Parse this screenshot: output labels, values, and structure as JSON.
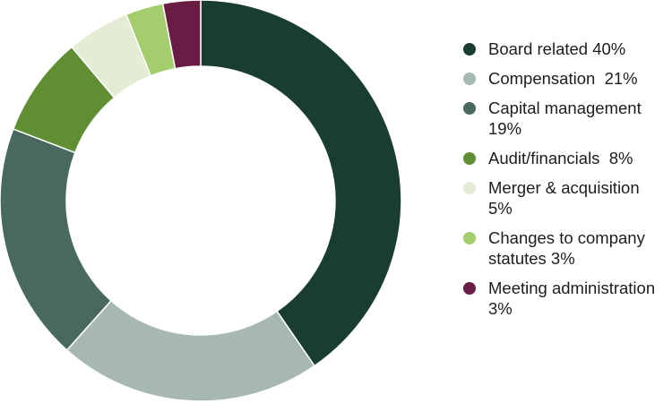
{
  "chart_data": {
    "type": "pie",
    "variant": "donut",
    "title": "",
    "legend_position": "right",
    "categories": [
      "Board related",
      "Compensation",
      "Capital management",
      "Audit/financials",
      "Merger & acquisition",
      "Changes to company statutes",
      "Meeting administration"
    ],
    "values": [
      40,
      21,
      19,
      8,
      5,
      3,
      3
    ],
    "unit": "%",
    "legend_labels": [
      "Board related 40%",
      "Compensation  21%",
      "Capital management 19%",
      "Audit/financials  8%",
      "Merger & acquisition 5%",
      "Changes to company statutes 3%",
      "Meeting administration 3%"
    ],
    "colors": [
      "#1a3d31",
      "#a7b7b1",
      "#496860",
      "#5f8e33",
      "#e3edd6",
      "#a4cd6d",
      "#6a1d44"
    ],
    "start_angle_deg": 0,
    "direction": "clockwise"
  }
}
